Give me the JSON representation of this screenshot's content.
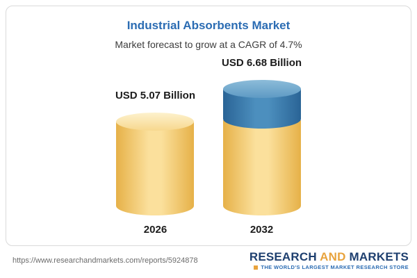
{
  "chart_data": {
    "type": "bar",
    "title": "Industrial Absorbents Market",
    "subtitle": "Market forecast to grow at a CAGR of 4.7%",
    "categories": [
      "2026",
      "2032"
    ],
    "values": [
      5.07,
      6.68
    ],
    "unit": "USD Billion",
    "value_labels": [
      "USD 5.07 Billion",
      "USD 6.68 Billion"
    ],
    "cagr_percent": 4.7,
    "legend": "none",
    "grid": false,
    "colors": {
      "bar_body": "#f6cf6f",
      "bar_cap_2032": "#3576ab",
      "title_text": "#2b6cb3"
    }
  },
  "footer": {
    "url": "https://www.researchandmarkets.com/reports/5924878",
    "logo": {
      "word1": "RESEARCH",
      "word2": "AND",
      "word3": "MARKETS",
      "tagline": "THE WORLD'S LARGEST MARKET RESEARCH STORE"
    }
  }
}
